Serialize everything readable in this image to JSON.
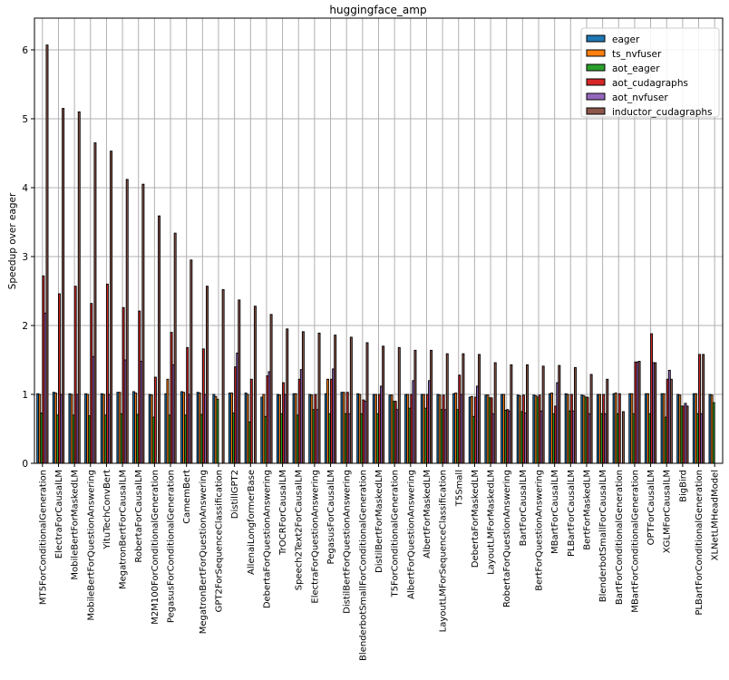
{
  "chart_data": {
    "type": "bar",
    "title": "huggingface_amp",
    "xlabel": "",
    "ylabel": "Speedup over eager",
    "ylim": [
      0,
      6.46
    ],
    "yticks": [
      0,
      1,
      2,
      3,
      4,
      5,
      6
    ],
    "grid": true,
    "legend_position": "top-right",
    "categories": [
      "MT5ForConditionalGeneration",
      "ElectraForCausalLM",
      "MobileBertForMaskedLM",
      "MobileBertForQuestionAnswering",
      "YituTechConvBert",
      "MegatronBertForCausalLM",
      "RobertaForCausalLM",
      "M2M100ForConditionalGeneration",
      "PegasusForConditionalGeneration",
      "CamemBert",
      "MegatronBertForQuestionAnswering",
      "GPT2ForSequenceClassification",
      "DistillGPT2",
      "AllenaiLongformerBase",
      "DebertaForQuestionAnswering",
      "TrOCRForCausalLM",
      "Speech2Text2ForCausalLM",
      "ElectraForQuestionAnswering",
      "PegasusForCausalLM",
      "DistilBertForQuestionAnswering",
      "BlenderbotSmallForConditionalGeneration",
      "DistilBertForMaskedLM",
      "T5ForConditionalGeneration",
      "AlbertForQuestionAnswering",
      "AlbertForMaskedLM",
      "LayoutLMForSequenceClassification",
      "T5Small",
      "DebertaForMaskedLM",
      "LayoutLMForMaskedLM",
      "RobertaForQuestionAnswering",
      "BartForCausalLM",
      "BertForQuestionAnswering",
      "MBartForCausalLM",
      "PLBartForCausalLM",
      "BertForMaskedLM",
      "BlenderbotSmallForCausalLM",
      "BartForConditionalGeneration",
      "MBartForConditionalGeneration",
      "OPTForCausalLM",
      "XGLMForCausalLM",
      "BigBird",
      "PLBartForConditionalGeneration",
      "XLNetLMHeadModel"
    ],
    "series": [
      {
        "name": "eager",
        "color": "#1f77b4",
        "values": [
          1.01,
          1.03,
          1.01,
          1.01,
          1.01,
          1.03,
          1.04,
          1.0,
          1.01,
          1.04,
          1.03,
          1.0,
          1.02,
          1.02,
          0.96,
          1.0,
          1.01,
          1.0,
          1.01,
          1.03,
          1.01,
          1.0,
          0.99,
          1.0,
          1.0,
          1.0,
          1.01,
          0.96,
          0.99,
          1.0,
          0.99,
          0.99,
          1.01,
          1.01,
          0.99,
          1.0,
          1.01,
          1.01,
          1.01,
          1.01,
          1.0,
          1.01,
          1.0
        ]
      },
      {
        "name": "ts_nvfuser",
        "color": "#ff7f0e",
        "values": [
          1.0,
          1.02,
          1.0,
          1.0,
          1.0,
          1.03,
          1.02,
          0.99,
          1.22,
          1.03,
          1.02,
          0.97,
          1.02,
          1.0,
          1.0,
          0.99,
          1.01,
          0.99,
          1.22,
          1.03,
          1.0,
          1.0,
          0.99,
          1.0,
          1.0,
          0.99,
          1.02,
          0.97,
          0.99,
          1.0,
          0.98,
          0.98,
          1.02,
          1.0,
          0.98,
          1.0,
          1.02,
          1.01,
          1.01,
          1.01,
          0.99,
          1.01,
          0.99
        ]
      },
      {
        "name": "aot_eager",
        "color": "#2ca02c",
        "values": [
          0.73,
          0.7,
          0.7,
          0.69,
          0.7,
          0.72,
          0.71,
          0.67,
          0.7,
          0.7,
          0.71,
          0.93,
          0.73,
          0.6,
          0.68,
          0.72,
          0.7,
          0.78,
          0.72,
          0.72,
          0.72,
          0.72,
          0.9,
          0.8,
          0.8,
          0.78,
          0.78,
          0.68,
          0.95,
          0.77,
          0.75,
          0.96,
          0.72,
          0.76,
          0.96,
          0.72,
          0.72,
          0.72,
          0.72,
          0.67,
          0.83,
          0.72,
          0.88
        ]
      },
      {
        "name": "aot_cudagraphs",
        "color": "#d62728",
        "values": [
          2.72,
          2.46,
          2.57,
          2.32,
          2.6,
          2.26,
          2.21,
          1.25,
          1.9,
          1.68,
          1.66,
          0,
          1.4,
          1.22,
          1.27,
          1.17,
          1.22,
          1.0,
          1.22,
          1.03,
          0.92,
          1.0,
          0.9,
          1.0,
          1.0,
          0.99,
          1.28,
          0.96,
          0.95,
          0.78,
          0.99,
          0.99,
          0.83,
          1.0,
          0.96,
          1.0,
          1.01,
          1.47,
          1.88,
          1.22,
          0.83,
          1.58,
          0
        ]
      },
      {
        "name": "aot_nvfuser",
        "color": "#9467bd",
        "values": [
          2.18,
          1.0,
          1.0,
          1.55,
          1.0,
          1.5,
          1.48,
          0,
          1.43,
          1.0,
          1.0,
          0,
          1.6,
          0,
          1.33,
          1.0,
          1.36,
          0.78,
          1.37,
          0.72,
          0.9,
          1.12,
          0.78,
          1.2,
          1.2,
          0.78,
          1.0,
          1.12,
          0.72,
          0.76,
          0.73,
          0.76,
          1.17,
          0.76,
          0.72,
          0.72,
          0,
          1.47,
          1.46,
          1.35,
          0.87,
          0.72,
          0
        ]
      },
      {
        "name": "inductor_cudagraphs",
        "color": "#8c564b",
        "values": [
          6.07,
          5.15,
          5.1,
          4.65,
          4.53,
          4.12,
          4.05,
          3.59,
          3.34,
          2.95,
          2.57,
          2.52,
          2.37,
          2.28,
          2.16,
          1.95,
          1.91,
          1.89,
          1.86,
          1.83,
          1.75,
          1.7,
          1.68,
          1.64,
          1.64,
          1.59,
          1.59,
          1.58,
          1.46,
          1.43,
          1.43,
          1.41,
          1.42,
          1.39,
          1.29,
          1.22,
          0.75,
          1.48,
          1.46,
          1.22,
          0.83,
          1.58,
          0
        ]
      }
    ]
  }
}
